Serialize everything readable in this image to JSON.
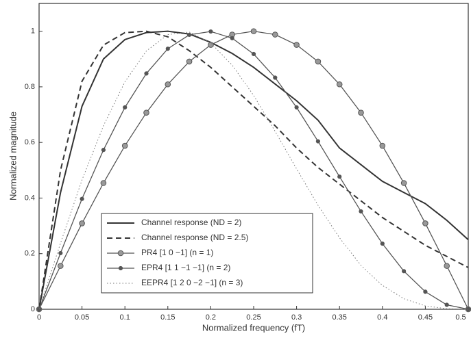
{
  "chart_data": {
    "type": "line",
    "x_label": "Normalized frequency (fT)",
    "y_label": "Normalized magnitude",
    "x": [
      0,
      0.025,
      0.05,
      0.075,
      0.1,
      0.125,
      0.15,
      0.175,
      0.2,
      0.225,
      0.25,
      0.275,
      0.3,
      0.325,
      0.35,
      0.375,
      0.4,
      0.425,
      0.45,
      0.475,
      0.5
    ],
    "series": [
      {
        "name": "Channel response (ND = 2)",
        "color": "#333333",
        "dash": "solid",
        "marker": "none",
        "width": 2,
        "values": [
          0,
          0.42,
          0.73,
          0.9,
          0.97,
          0.995,
          1.0,
          0.99,
          0.96,
          0.92,
          0.87,
          0.81,
          0.75,
          0.68,
          0.58,
          0.52,
          0.46,
          0.42,
          0.38,
          0.32,
          0.25
        ]
      },
      {
        "name": "Channel response (ND = 2.5)",
        "color": "#333333",
        "dash": "dashed",
        "marker": "none",
        "width": 2,
        "values": [
          0,
          0.5,
          0.82,
          0.95,
          0.995,
          1.0,
          0.98,
          0.93,
          0.87,
          0.8,
          0.73,
          0.66,
          0.58,
          0.51,
          0.45,
          0.39,
          0.33,
          0.28,
          0.23,
          0.19,
          0.15
        ]
      },
      {
        "name": "PR4 [1 0 −1] (n = 1)",
        "color": "#555555",
        "dash": "solid",
        "marker": "circle",
        "width": 1.3,
        "values": [
          0,
          0.156,
          0.309,
          0.454,
          0.588,
          0.707,
          0.809,
          0.891,
          0.951,
          0.988,
          1.0,
          0.988,
          0.951,
          0.891,
          0.809,
          0.707,
          0.588,
          0.454,
          0.309,
          0.156,
          0
        ]
      },
      {
        "name": "EPR4 [1 1 −1 −1] (n = 2)",
        "color": "#555555",
        "dash": "solid",
        "marker": "dot",
        "width": 1.3,
        "values": [
          0,
          0.202,
          0.397,
          0.573,
          0.726,
          0.848,
          0.937,
          0.987,
          0.999,
          0.975,
          0.918,
          0.833,
          0.726,
          0.604,
          0.477,
          0.352,
          0.236,
          0.137,
          0.063,
          0.016,
          0
        ]
      },
      {
        "name": "EEPR4 [1 2 0 −2 −1] (n = 3)",
        "color": "#777777",
        "dash": "dotted",
        "marker": "none",
        "width": 1,
        "values": [
          0,
          0.238,
          0.465,
          0.66,
          0.818,
          0.929,
          0.988,
          0.997,
          0.958,
          0.878,
          0.769,
          0.64,
          0.505,
          0.374,
          0.257,
          0.158,
          0.086,
          0.038,
          0.012,
          0.002,
          0
        ]
      }
    ],
    "xlim": [
      0,
      0.5
    ],
    "xticks": [
      0,
      0.05,
      0.1,
      0.15,
      0.2,
      0.25,
      0.3,
      0.35,
      0.4,
      0.45,
      0.5
    ],
    "ylim": [
      0,
      1.1
    ],
    "yticks": [
      0,
      0.2,
      0.4,
      0.6,
      0.8,
      1
    ],
    "grid": false,
    "legend": "lower-left"
  }
}
